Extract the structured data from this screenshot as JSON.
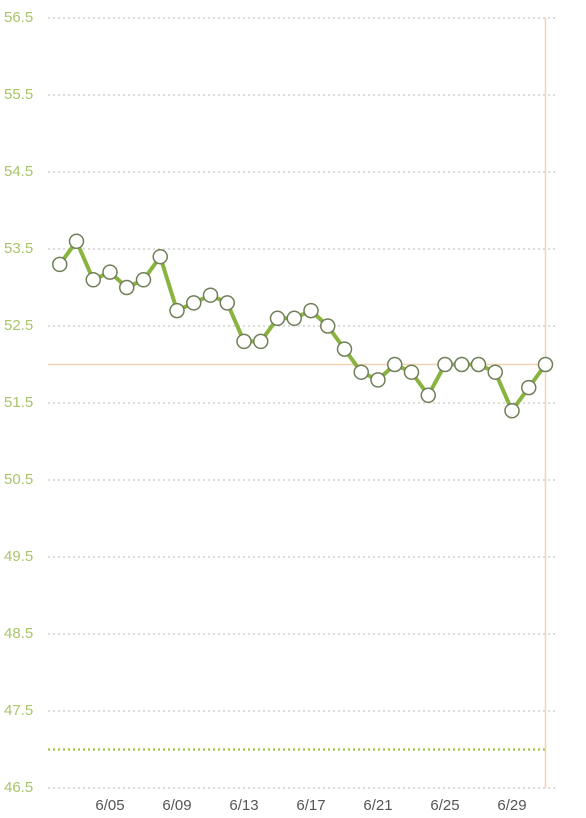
{
  "chart_data": {
    "type": "line",
    "categories": [
      null,
      null,
      null,
      "6/05",
      null,
      null,
      null,
      "6/09",
      null,
      null,
      null,
      "6/13",
      null,
      null,
      null,
      "6/17",
      null,
      null,
      null,
      "6/21",
      null,
      null,
      null,
      "6/25",
      null,
      null,
      null,
      "6/29",
      null,
      null
    ],
    "series": [
      {
        "color": "#8ab33f",
        "values": [
          53.3,
          53.6,
          53.1,
          53.2,
          53.0,
          53.1,
          53.4,
          52.7,
          52.8,
          52.9,
          52.8,
          52.3,
          52.3,
          52.6,
          52.6,
          52.7,
          52.5,
          52.2,
          51.9,
          51.8,
          52.0,
          51.9,
          51.6,
          52.0,
          52.0,
          52.0,
          51.9,
          51.4,
          51.7,
          52.0
        ]
      }
    ],
    "ylim": [
      46.5,
      56.5
    ],
    "yticks": [
      56.5,
      55.5,
      54.5,
      53.5,
      52.5,
      51.5,
      50.5,
      49.5,
      48.5,
      47.5,
      46.5
    ],
    "grid": true,
    "reference_lines": [
      {
        "value": 52,
        "color": "#f2d2b0",
        "style": "solid"
      },
      {
        "value": 47,
        "color": "#a6c94c",
        "style": "dotted"
      }
    ]
  }
}
